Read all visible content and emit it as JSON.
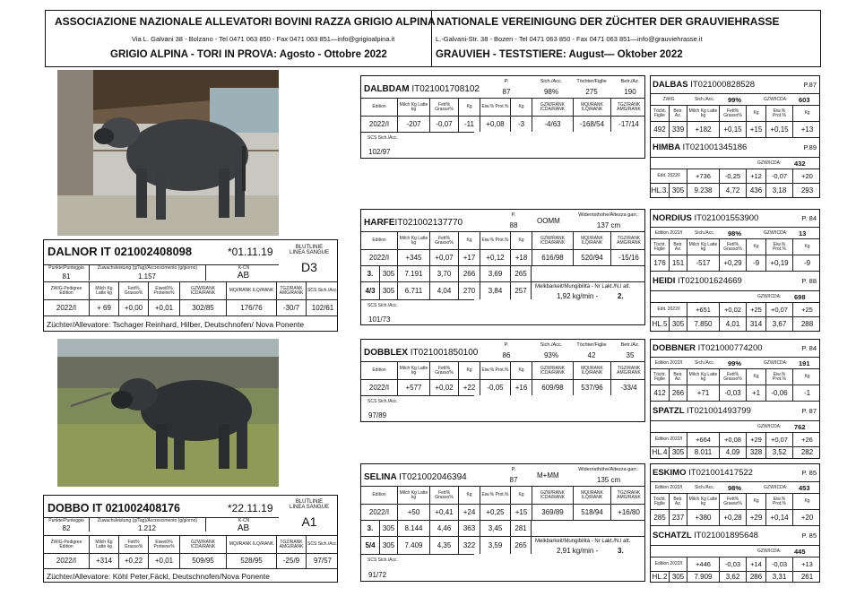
{
  "header": {
    "it_title": "ASSOCIAZIONE NAZIONALE ALLEVATORI BOVINI RAZZA GRIGIO ALPINA",
    "it_address": "Via L. Galvani 38 - Bolzano - Tel 0471 063 850 - Fax  0471 063 851—info@grigioalpina.it",
    "it_subtitle": "GRIGIO ALPINA - TORI IN PROVA: Agosto - Ottobre  2022",
    "de_title": "NATIONALE VEREINIGUNG DER ZÜCHTER DER GRAUVIEHRASSE",
    "de_address": "L.-Galvani-Str. 38 - Bozen - Tel 0471 063 850 - Fax  0471 063 851—info@grauviehrasse.it",
    "de_subtitle": "GRAUVIEH - TESTSTIERE:  August— Oktober 2022"
  },
  "dalnor": {
    "name": "DALNOR  IT 021002408098",
    "date": "*01.11.19",
    "line_label": "BLUTLINIE\nLINEA SANGUE",
    "line": "D3",
    "h1": [
      "Punkte/Punteggio",
      "Zuwachsleistung (g/Tag)/Accrescimento (g/giorno)",
      "K-CN"
    ],
    "v1": [
      "81",
      "1.157",
      "AB"
    ],
    "h2": [
      "ZWIG-Pedigree Edition",
      "Milch Kg Latte kg",
      "Fett% Grasso%",
      "Eiweiß% Proteine%",
      "GZW/RANK ICDA/RANK",
      "MQI/RANK ILQ/RANK",
      "TGZ/RANK AMG/RANK",
      "SCS Sich./Acc."
    ],
    "v2": [
      "2022/I",
      "+ 69",
      "+0,00",
      "+0,01",
      "302/85",
      "176/76",
      "-30/7",
      "102/61"
    ],
    "breeder": "Züchter/Allevatore:  Tschager Reinhard, Hilber, Deutschnofen/ Nova Ponente"
  },
  "dobbo": {
    "name": "DOBBO   IT  021002408176",
    "date": "*22.11.19",
    "line_label": "BLUTLINIE\nLINEA SANGUE",
    "line": "A1",
    "h1": [
      "Punkte/Punteggio",
      "Zuwachsleistung (g/Tag)/Accrescimento (g/giorno)",
      "K-CN"
    ],
    "v1": [
      "82",
      "1.212",
      "AB"
    ],
    "h2": [
      "ZWIG-Pedigree Edition",
      "Milch Kg Latte kg",
      "Fett% Grasso%",
      "Eiweiß% Proteine%",
      "GZW/RANK ICDA/RANK",
      "MQI/RANK ILQ/RANK",
      "TGZ/RANK AMG/RANK",
      "SCS Sich./Acc."
    ],
    "v2": [
      "2022/I",
      "+314",
      "+0,22",
      "+0,01",
      "509/95",
      "528/95",
      "-25/9",
      "97/57"
    ],
    "breeder": "Züchter/Allevatore: Köhl Peter,Fäckl, Deutschnofen/Nova Ponente"
  },
  "dalbdam": {
    "name": "DALBDAM",
    "code": "IT021001708102",
    "top": [
      [
        "P.",
        "87"
      ],
      [
        "Sich./Acc.",
        "98%"
      ],
      [
        "Töchter/Figlie",
        "275"
      ],
      [
        "Betr./Az.",
        "190"
      ]
    ],
    "hdr": [
      "Edition",
      "Milch Kg Latte kg",
      "Fett% Grasso%",
      "Kg",
      "Eiw.% Prot.%",
      "Kg",
      "GZW/RANK ICDA/RANK",
      "MQI/RANK ILQ/RANK",
      "TGZ/RANK AMG/RANK"
    ],
    "vals": [
      "2022/I",
      "-207",
      "-0,07",
      "-11",
      "+0,08",
      "-3",
      "-4/63",
      "-168/54",
      "-17/14"
    ],
    "scs_label": "SCS Sich./Acc.",
    "scs": "102/97"
  },
  "harfe": {
    "name": "HARFE",
    "code": "IT021002137770",
    "p_label": "P.",
    "p": "88",
    "mid": "OOMM",
    "wh_label": "Widerristhöhe/Altezza garr.:",
    "wh": "137 cm",
    "hdr": [
      "Edition",
      "Milch Kg Latte kg",
      "Fett% Grasso%",
      "Kg",
      "Eiw.% Prot.%",
      "Kg",
      "GZW/RANK ICDA/RANK",
      "MQI/RANK ILQ/RANK",
      "TGZ/RANK AMG/RANK"
    ],
    "vals": [
      "2022/I",
      "+345",
      "+0,07",
      "+17",
      "+0,12",
      "+18",
      "616/98",
      "520/94",
      "-15/16"
    ],
    "lact": [
      [
        "3.",
        "305",
        "7.191",
        "3,70",
        "266",
        "3,69",
        "265"
      ],
      [
        "4/3",
        "305",
        "6.711",
        "4,04",
        "270",
        "3,84",
        "257"
      ]
    ],
    "milk_label": "Melkbarkeit/Mungibilità - Nr Lakt./N.l att.",
    "milk_val": "1,92 kg/min -",
    "milk_n": "2.",
    "scs_label": "SCS Sich./Acc.",
    "scs": "101/73"
  },
  "dobblex": {
    "name": "DOBBLEX",
    "code": "IT021001850100",
    "top": [
      [
        "P.",
        "86"
      ],
      [
        "Sich./Acc.",
        "93%"
      ],
      [
        "Töchter/Figlie",
        "42"
      ],
      [
        "Betr./Az.",
        "35"
      ]
    ],
    "hdr": [
      "Edition",
      "Milch Kg Latte kg",
      "Fett% Grasso%",
      "Kg",
      "Eiw.% Prot.%",
      "Kg",
      "GZW/RANK ICDA/RANK",
      "MQI/RANK ILQ/RANK",
      "TGZ/RANK AMG/RANK"
    ],
    "vals": [
      "2022/I",
      "+577",
      "+0,02",
      "+22",
      "-0,05",
      "+16",
      "609/98",
      "537/96",
      "-33/4"
    ],
    "scs_label": "SCS Sich./Acc.",
    "scs": "97/89"
  },
  "selina": {
    "name": "SELINA",
    "code": "IT021002046394",
    "p_label": "P.",
    "p": "87",
    "mid": "M+MM",
    "wh_label": "Widerristhöhe/Altezza garr.:",
    "wh": "135 cm",
    "hdr": [
      "Edition",
      "Milch Kg Latte kg",
      "Fett% Grasso%",
      "Kg",
      "Eiw.% Prot.%",
      "Kg",
      "GZW/RANK ICDA/RANK",
      "MQI/RANK ILQ/RANK",
      "TGZ/RANK AMG/RANK"
    ],
    "vals": [
      "2022/I",
      "+50",
      "+0,41",
      "+24",
      "+0,25",
      "+15",
      "369/89",
      "518/94",
      "+16/80"
    ],
    "lact": [
      [
        "3.",
        "305",
        "8.144",
        "4,46",
        "363",
        "3,45",
        "281"
      ],
      [
        "5/4",
        "305",
        "7.409",
        "4,35",
        "322",
        "3,59",
        "265"
      ]
    ],
    "milk_label": "Melkbarkeit/Mungibilità - Nr Lakt./N.l att.",
    "milk_val": "2,91 kg/min -",
    "milk_n": "3.",
    "scs_label": "SCS Sich./Acc.",
    "scs": "91/72"
  },
  "right": [
    {
      "sire": {
        "name": "DALBAS",
        "code": "IT021000828528",
        "p": "P.87",
        "edition": "ZWIG",
        "acc_label": "Sich./Acc.",
        "acc": "99%",
        "gzw_label": "GZW/ICDA:",
        "gzw": "603",
        "hdr": [
          "Töcht. Figlie",
          "Betr. Az.",
          "Milch Kg Latte kg",
          "Fett% Grasso%",
          "Kg",
          "Eiw.% Prot.%",
          "Kg"
        ],
        "vals": [
          "492",
          "339",
          "+182",
          "+0,15",
          "+15",
          "+0,15",
          "+13"
        ]
      },
      "dam": {
        "name": "HIMBA",
        "code": "IT021001345186",
        "p": "P.89",
        "gzw_label": "GZW/ICDA:",
        "gzw": "432",
        "hdr": [
          "Edit. 2022/I",
          "+736",
          "-0,25",
          "+12",
          "-0,07",
          "+20"
        ],
        "vals": [
          "HL.3.",
          "305",
          "9.238",
          "4,72",
          "436",
          "3,18",
          "293"
        ]
      }
    },
    {
      "sire": {
        "name": "NORDIUS",
        "code": "IT021001553900",
        "p": "P. 84",
        "edition": "Edition 2022/I",
        "acc_label": "Sich./Acc.",
        "acc": "98%",
        "gzw_label": "GZW/ICDA:",
        "gzw": "13",
        "hdr": [
          "Töcht. Figlie",
          "Betr. Az.",
          "Milch Kg Latte kg",
          "Fett% Grasso%",
          "Kg",
          "Eiw.% Prot.%",
          "Kg"
        ],
        "vals": [
          "176",
          "151",
          "-517",
          "+0,29",
          "-9",
          "+0,19",
          "-9"
        ]
      },
      "dam": {
        "name": "HEIDI",
        "code": "IT021001624669",
        "p": "P. 88",
        "gzw_label": "GZW/ICDA:",
        "gzw": "698",
        "hdr": [
          "Edit. 2022/I",
          "+651",
          "+0,02",
          "+25",
          "+0,07",
          "+25"
        ],
        "vals": [
          "HL.5",
          "305",
          "7.850",
          "4,01",
          "314",
          "3,67",
          "288"
        ]
      }
    },
    {
      "sire": {
        "name": "DOBBNER",
        "code": "IT021000774200",
        "p": "P. 84",
        "edition": "Edition 2022/I",
        "acc_label": "Sich./Acc.",
        "acc": "99%",
        "gzw_label": "GZW/ICDA:",
        "gzw": "191",
        "hdr": [
          "Töcht. Figlie",
          "Betr. Az.",
          "Milch Kg Latte kg",
          "Fett% Grasso%",
          "Kg",
          "Eiw.% Prot.%",
          "Kg"
        ],
        "vals": [
          "412",
          "266",
          "+71",
          "-0,03",
          "+1",
          "-0,06",
          "-1"
        ]
      },
      "dam": {
        "name": "SPATZL",
        "code": "IT021001493799",
        "p": "P. 87",
        "gzw_label": "GZW/ICDA:",
        "gzw": "762",
        "hdr": [
          "Edition 2022/I",
          "+664",
          "+0,08",
          "+29",
          "+0,07",
          "+26"
        ],
        "vals": [
          "HL.4",
          "305",
          "8.011",
          "4,09",
          "328",
          "3,52",
          "282"
        ]
      }
    },
    {
      "sire": {
        "name": "ESKIMO",
        "code": "IT021001417522",
        "p": "P. 85",
        "edition": "Edition 2022/I",
        "acc_label": "Sich./Acc.",
        "acc": "98%",
        "gzw_label": "GZW/ICDA:",
        "gzw": "453",
        "hdr": [
          "Töcht. Figlie",
          "Betr. Az.",
          "Milch Kg Latte kg",
          "Fett% Grasso%",
          "Kg",
          "Eiw.% Prot.%",
          "Kg"
        ],
        "vals": [
          "285",
          "237",
          "+380",
          "+0,28",
          "+29",
          "+0,14",
          "+20"
        ]
      },
      "dam": {
        "name": "SCHATZL",
        "code": "IT021001895648",
        "p": "P. 85",
        "gzw_label": "GZW/ICDA:",
        "gzw": "445",
        "hdr": [
          "Edition 2022/I",
          "+446",
          "-0,03",
          "+14",
          "-0,03",
          "+13"
        ],
        "vals": [
          "HL.2",
          "305",
          "7.909",
          "3,62",
          "286",
          "3,31",
          "261"
        ]
      }
    }
  ]
}
